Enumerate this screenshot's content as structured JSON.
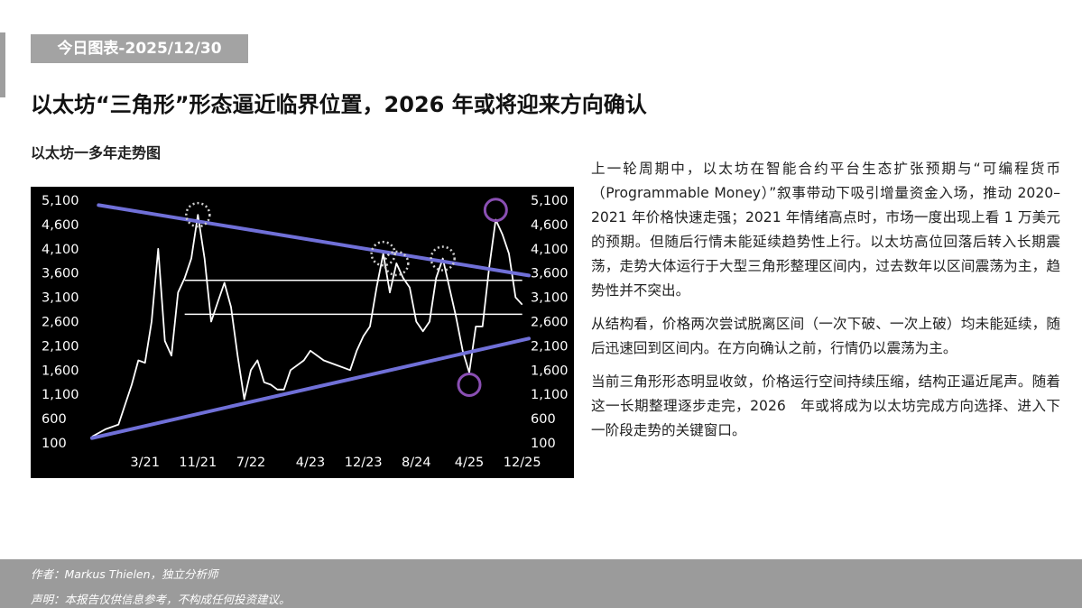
{
  "header": {
    "date_tag": "今日图表-2025/12/30",
    "headline": "以太坊“三角形”形态逼近临界位置，2026 年或将迎来方向确认",
    "chart_caption": "以太坊一多年走势图"
  },
  "body": {
    "paragraphs": [
      "上一轮周期中，以太坊在智能合约平台生态扩张预期与“可编程货币（Programmable Money）”叙事带动下吸引增量资金入场，推动 2020–2021 年价格快速走强；2021 年情绪高点时，市场一度出现上看 1 万美元的预期。但随后行情未能延续趋势性上行。以太坊高位回落后转入长期震荡，走势大体运行于大型三角形整理区间内，过去数年以区间震荡为主，趋势性并不突出。",
      "从结构看，价格两次尝试脱离区间（一次下破、一次上破）均未能延续，随后迅速回到区间内。在方向确认之前，行情仍以震荡为主。",
      "当前三角形形态明显收敛，价格运行空间持续压缩，结构正逼近尾声。随着这一长期整理逐步走完，2026　年或将成为以太坊完成方向选择、进入下一阶段走势的关键窗口。"
    ]
  },
  "footer": {
    "author": "作者：Markus Thielen，独立分析师",
    "disclaimer": "声明：本报告仅供信息参考，不构成任何投资建议。"
  },
  "colors": {
    "chart_background": "#000000",
    "price_line": "#ffffff",
    "trendline": "#7070d8",
    "range_line": "#ffffff",
    "top_marker": "#cfcfcf",
    "breakout_marker": "#8a4fb3"
  },
  "chart_data": {
    "type": "line",
    "title": "",
    "xlabel": "",
    "ylabel": "",
    "x_ticks": [
      "3/21",
      "11/21",
      "7/22",
      "4/23",
      "12/23",
      "8/24",
      "4/25",
      "12/25"
    ],
    "y_ticks": [
      100,
      600,
      1100,
      1600,
      2100,
      2600,
      3100,
      3600,
      4100,
      4600,
      5100
    ],
    "y_tick_labels": [
      "100",
      "600",
      "1,100",
      "1,600",
      "2,100",
      "2,600",
      "3,100",
      "3,600",
      "4,100",
      "4,600",
      "5,100"
    ],
    "ylim": [
      100,
      5100
    ],
    "xlim": [
      "2020-07",
      "2026-01"
    ],
    "grid": false,
    "y_axis_both_sides": true,
    "series": [
      {
        "values": [
          [
            "2020-07",
            230
          ],
          [
            "2020-09",
            380
          ],
          [
            "2020-11",
            480
          ],
          [
            "2021-01",
            1300
          ],
          [
            "2021-02",
            1800
          ],
          [
            "2021-03",
            1750
          ],
          [
            "2021-04",
            2600
          ],
          [
            "2021-05",
            4100
          ],
          [
            "2021-06",
            2200
          ],
          [
            "2021-07",
            1900
          ],
          [
            "2021-08",
            3200
          ],
          [
            "2021-09",
            3500
          ],
          [
            "2021-10",
            3900
          ],
          [
            "2021-11",
            4800
          ],
          [
            "2021-12",
            3900
          ],
          [
            "2022-01",
            2600
          ],
          [
            "2022-02",
            3000
          ],
          [
            "2022-03",
            3400
          ],
          [
            "2022-04",
            2900
          ],
          [
            "2022-05",
            1900
          ],
          [
            "2022-06",
            1000
          ],
          [
            "2022-07",
            1600
          ],
          [
            "2022-08",
            1800
          ],
          [
            "2022-09",
            1350
          ],
          [
            "2022-10",
            1300
          ],
          [
            "2022-11",
            1200
          ],
          [
            "2022-12",
            1200
          ],
          [
            "2023-01",
            1600
          ],
          [
            "2023-03",
            1800
          ],
          [
            "2023-04",
            2000
          ],
          [
            "2023-06",
            1800
          ],
          [
            "2023-08",
            1700
          ],
          [
            "2023-10",
            1600
          ],
          [
            "2023-11",
            2000
          ],
          [
            "2023-12",
            2300
          ],
          [
            "2024-01",
            2500
          ],
          [
            "2024-02",
            3300
          ],
          [
            "2024-03",
            4000
          ],
          [
            "2024-04",
            3200
          ],
          [
            "2024-05",
            3800
          ],
          [
            "2024-06",
            3500
          ],
          [
            "2024-07",
            3300
          ],
          [
            "2024-08",
            2600
          ],
          [
            "2024-09",
            2400
          ],
          [
            "2024-10",
            2600
          ],
          [
            "2024-11",
            3500
          ],
          [
            "2024-12",
            3900
          ],
          [
            "2025-01",
            3300
          ],
          [
            "2025-02",
            2700
          ],
          [
            "2025-03",
            2000
          ],
          [
            "2025-04",
            1550
          ],
          [
            "2025-05",
            2500
          ],
          [
            "2025-06",
            2500
          ],
          [
            "2025-07",
            3700
          ],
          [
            "2025-08",
            4700
          ],
          [
            "2025-09",
            4400
          ],
          [
            "2025-10",
            4000
          ],
          [
            "2025-11",
            3100
          ],
          [
            "2025-12",
            2950
          ]
        ]
      }
    ],
    "annotations": [
      {
        "type": "trendline",
        "from": [
          "2020-08",
          5000
        ],
        "to": [
          "2026-01",
          3550
        ]
      },
      {
        "type": "trendline",
        "from": [
          "2020-07",
          200
        ],
        "to": [
          "2026-01",
          2250
        ]
      },
      {
        "type": "hline",
        "y": 3450,
        "from": "2021-09",
        "to": "2025-12"
      },
      {
        "type": "hline",
        "y": 2750,
        "from": "2021-09",
        "to": "2025-12"
      },
      {
        "type": "circle",
        "style": "dotted",
        "at": [
          "2021-11",
          4800
        ]
      },
      {
        "type": "circle",
        "style": "dotted",
        "at": [
          "2024-03",
          4000
        ]
      },
      {
        "type": "circle",
        "style": "dotted",
        "at": [
          "2024-05",
          3800
        ]
      },
      {
        "type": "circle",
        "style": "dotted",
        "at": [
          "2024-12",
          3900
        ]
      },
      {
        "type": "circle",
        "style": "solid",
        "at": [
          "2025-08",
          4900
        ]
      },
      {
        "type": "circle",
        "style": "solid",
        "at": [
          "2025-04",
          1300
        ]
      }
    ]
  }
}
